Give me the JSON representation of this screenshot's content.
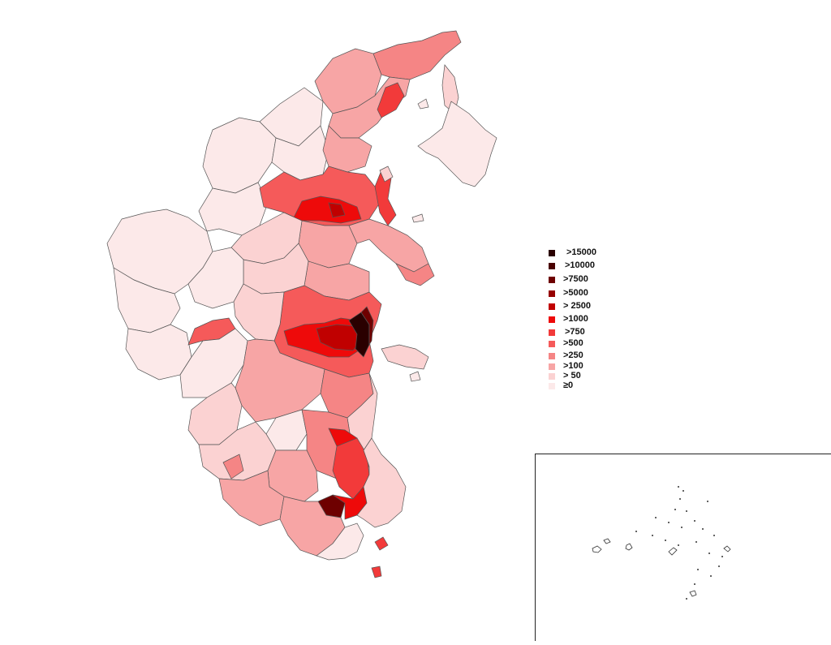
{
  "legend": {
    "items": [
      {
        "label": ">15000",
        "color": "#2a0000"
      },
      {
        "label": ">10000",
        "color": "#4a0000"
      },
      {
        "label": ">7500",
        "color": "#6e0000"
      },
      {
        "label": ">5000",
        "color": "#960000"
      },
      {
        "label": "> 2500",
        "color": "#c00000"
      },
      {
        "label": ">1000",
        "color": "#ee0a0a"
      },
      {
        "label": ">750",
        "color": "#f23a3a"
      },
      {
        "label": ">500",
        "color": "#f55a5a"
      },
      {
        "label": ">250",
        "color": "#f58585"
      },
      {
        "label": ">100",
        "color": "#f7a5a5"
      },
      {
        "label": "> 50",
        "color": "#fbd2d2"
      },
      {
        "label": "≥0",
        "color": "#fce9e9"
      }
    ]
  }
}
